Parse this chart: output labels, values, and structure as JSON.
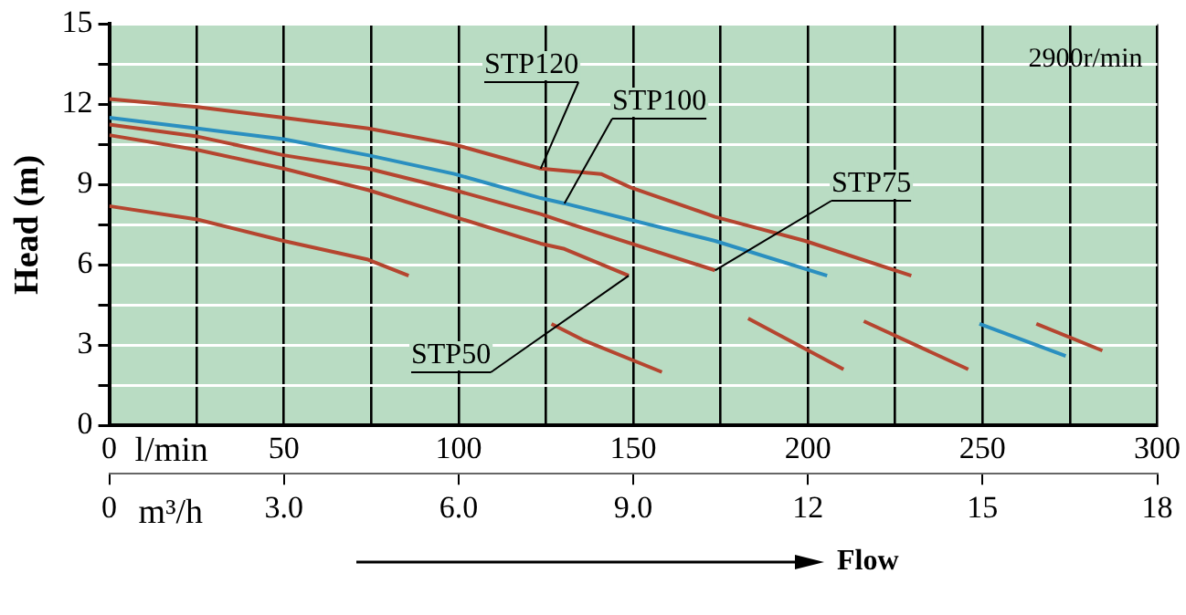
{
  "chart_data": {
    "type": "line",
    "xlabel": "l/min",
    "x2label": "m³/h",
    "ylabel": "Head (m)",
    "xlim": [
      0,
      300
    ],
    "xticks": [
      0,
      {
        "value": 25,
        "label": null
      },
      50,
      {
        "value": 75,
        "label": null
      },
      100,
      {
        "value": 125,
        "label": null
      },
      150,
      {
        "value": 175,
        "label": null
      },
      200,
      {
        "value": 225,
        "label": null
      },
      250,
      {
        "value": 275,
        "label": null
      },
      300
    ],
    "x2lim": [
      0,
      18
    ],
    "x2ticks": [
      0,
      {
        "value": 3,
        "label": "3.0"
      },
      {
        "value": 6,
        "label": "6.0"
      },
      {
        "value": 9,
        "label": "9.0"
      },
      12,
      15,
      18
    ],
    "ylim": [
      0,
      15
    ],
    "yticks": [
      0,
      {
        "value": 1.5,
        "label": null
      },
      3,
      {
        "value": 4.5,
        "label": null
      },
      6,
      {
        "value": 7.5,
        "label": null
      },
      9,
      {
        "value": 10.5,
        "label": null
      },
      12,
      {
        "value": 13.5,
        "label": null
      },
      15
    ],
    "grid": true,
    "legend": false,
    "marker": "none",
    "line_style": "solid",
    "series": [
      {
        "name": "STP120",
        "color": "#b5452f",
        "x": [
          0,
          25.2,
          49.9,
          74.1,
          98.8,
          123.5,
          140.8,
          149.2,
          173.4,
          199.2,
          229.6,
          240,
          265.4,
          284.3
        ],
        "values": [
          12.2,
          11.9,
          11.5,
          11.1,
          10.5,
          9.6,
          9.4,
          8.9,
          7.8,
          6.9,
          5.6,
          null,
          3.8,
          2.8
        ]
      },
      {
        "name": "STP100",
        "color": "#2a8fc0",
        "x": [
          0,
          25.2,
          49.9,
          74.1,
          98.8,
          123.5,
          130.3,
          173.4,
          205.5,
          230,
          249.1,
          273.8
        ],
        "values": [
          11.5,
          11.1,
          10.7,
          10.1,
          9.4,
          8.5,
          8.3,
          6.9,
          5.6,
          null,
          3.8,
          2.6
        ]
      },
      {
        "name": "STP75",
        "color": "#b5452f",
        "x": [
          0,
          25.2,
          49.9,
          74.1,
          98.8,
          123.5,
          130.3,
          173.4,
          195,
          216,
          245.9
        ],
        "values": [
          11.25,
          10.8,
          10.1,
          9.6,
          8.8,
          7.9,
          7.6,
          5.8,
          null,
          3.9,
          2.1
        ]
      },
      {
        "name": "STP50",
        "color": "#b5452f",
        "x": [
          0,
          25.2,
          49.9,
          74.1,
          98.8,
          123.5,
          130.3,
          148.7,
          165,
          182.9,
          210.2
        ],
        "values": [
          10.85,
          10.3,
          9.6,
          8.8,
          7.8,
          6.8,
          6.6,
          5.6,
          null,
          4.0,
          2.1
        ]
      },
      {
        "color": "#b5452f",
        "x": [
          0,
          25.2,
          49.9,
          74.1,
          85.7,
          105,
          126.6,
          135.6,
          158.2
        ],
        "values": [
          8.2,
          7.7,
          6.9,
          6.2,
          5.6,
          null,
          3.8,
          3.2,
          2.0
        ]
      }
    ],
    "annotations": [
      "2900r/min",
      "Flow"
    ]
  }
}
